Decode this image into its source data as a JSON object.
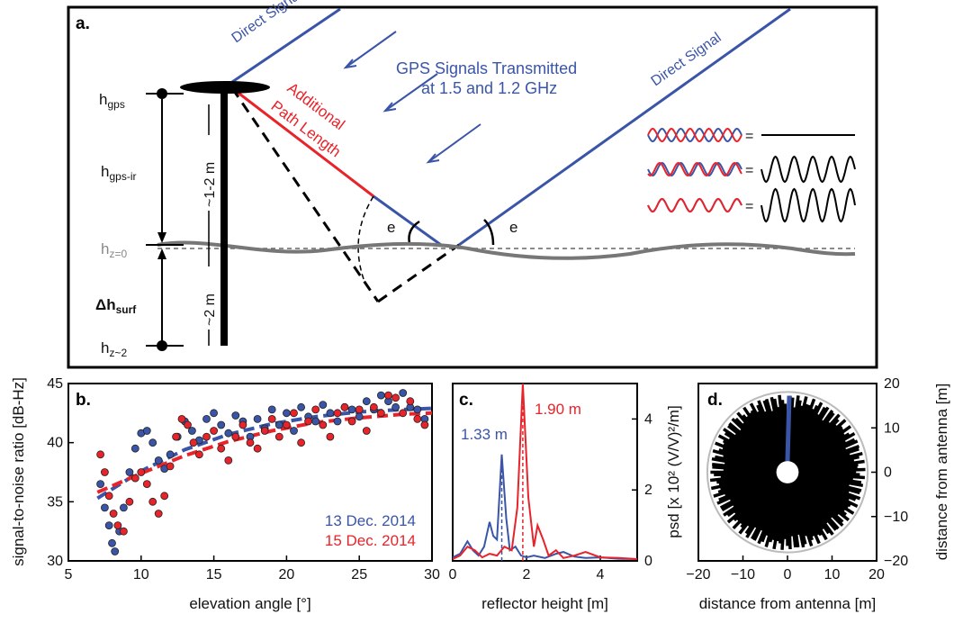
{
  "panel_a": {
    "label": "a.",
    "direct_signal_left": "Direct Signal",
    "direct_signal_right": "Direct Signal",
    "gps_signals_line1": "GPS Signals Transmitted",
    "gps_signals_line2": "at 1.5 and 1.2 GHz",
    "additional_path_line1": "Additional",
    "additional_path_line2": "Path Length",
    "h_gps": "h",
    "h_gps_sub": "gps",
    "h_gps_ir": "h",
    "h_gps_ir_sub": "gps-ir",
    "h_z0": "h",
    "h_z0_sub": "z=0",
    "delta_h": "Δh",
    "delta_h_sub": "surf",
    "h_z2": "h",
    "h_z2_sub": "z~2",
    "range_upper": "~1-2 m",
    "range_lower": "~2 m",
    "angle_label_left": "e",
    "angle_label_right": "e",
    "equals_sign": "=",
    "colors": {
      "blue": "#3a55a8",
      "red": "#e8232a",
      "gray": "#777777"
    }
  },
  "panel_b": {
    "label": "b.",
    "legend": [
      "13 Dec. 2014",
      "15 Dec. 2014"
    ],
    "legend_colors": [
      "#3a55a8",
      "#e8232a"
    ]
  },
  "panel_c": {
    "label": "c.",
    "peak_blue": "1.33 m",
    "peak_red": "1.90 m"
  },
  "panel_d": {
    "label": "d."
  },
  "chart_data": [
    {
      "type": "scatter",
      "panel": "b",
      "xlabel": "elevation angle [°]",
      "ylabel": "signal-to-noise ratio [dB-Hz]",
      "xlim": [
        5,
        30
      ],
      "ylim": [
        30,
        45
      ],
      "xticks": [
        "5",
        "10",
        "15",
        "20",
        "25",
        "30"
      ],
      "yticks": [
        "30",
        "35",
        "40",
        "45"
      ],
      "series": [
        {
          "name": "13 Dec. 2014",
          "color": "#3a55a8",
          "x": [
            7.2,
            7.5,
            7.8,
            8.0,
            8.2,
            8.5,
            8.8,
            9.2,
            9.6,
            10.0,
            10.4,
            10.8,
            11.2,
            11.6,
            12.0,
            12.5,
            13.0,
            13.5,
            14.0,
            14.5,
            15.0,
            15.5,
            16.0,
            16.5,
            17.0,
            17.5,
            18.0,
            18.5,
            19.0,
            19.5,
            20.0,
            20.5,
            21.0,
            21.5,
            22.0,
            22.5,
            23.0,
            23.5,
            24.0,
            24.5,
            25.0,
            25.5,
            26.0,
            26.5,
            27.0,
            27.5,
            28.0,
            28.5,
            29.0,
            29.5
          ],
          "y": [
            36.5,
            34.5,
            33.0,
            31.5,
            30.8,
            32.5,
            34.5,
            37.5,
            39.5,
            40.8,
            41.0,
            40.0,
            38.5,
            37.8,
            39.0,
            40.5,
            41.8,
            41.0,
            40.2,
            42.0,
            42.5,
            41.5,
            40.8,
            42.3,
            41.8,
            40.5,
            42.0,
            41.2,
            42.8,
            41.5,
            42.5,
            41.0,
            43.0,
            42.2,
            41.8,
            43.2,
            42.5,
            41.8,
            43.0,
            42.8,
            42.2,
            43.5,
            42.8,
            44.0,
            43.5,
            43.0,
            44.2,
            43.0,
            42.8,
            42.0
          ]
        },
        {
          "name": "15 Dec. 2014",
          "color": "#e8232a",
          "x": [
            7.2,
            7.5,
            7.8,
            8.1,
            8.4,
            8.8,
            9.2,
            9.6,
            10.0,
            10.4,
            10.8,
            11.2,
            11.6,
            12.0,
            12.4,
            12.8,
            13.2,
            13.6,
            14.0,
            14.5,
            15.0,
            15.5,
            16.0,
            16.5,
            17.0,
            17.5,
            18.0,
            18.5,
            19.0,
            19.5,
            20.0,
            20.5,
            21.0,
            21.5,
            22.0,
            22.5,
            23.0,
            23.5,
            24.0,
            24.5,
            25.0,
            25.5,
            26.0,
            26.5,
            27.0,
            27.5,
            28.0,
            28.5,
            29.0,
            29.5
          ],
          "y": [
            39.0,
            37.5,
            35.5,
            34.0,
            33.0,
            32.5,
            35.0,
            37.0,
            37.5,
            36.5,
            35.0,
            34.0,
            35.5,
            38.0,
            40.5,
            42.0,
            41.5,
            40.0,
            39.0,
            40.5,
            41.0,
            39.5,
            38.5,
            40.5,
            41.5,
            40.0,
            39.5,
            41.0,
            42.0,
            40.5,
            41.5,
            42.5,
            40.0,
            41.8,
            42.8,
            41.5,
            40.5,
            42.5,
            43.0,
            41.8,
            42.8,
            41.0,
            43.0,
            42.5,
            44.0,
            43.8,
            42.5,
            43.5,
            42.0,
            41.5
          ]
        }
      ],
      "fits": [
        {
          "name": "13 Dec. 2014",
          "color": "#3a55a8",
          "x": [
            7,
            10,
            13,
            16,
            19,
            22,
            25,
            28,
            30
          ],
          "y": [
            35.3,
            37.6,
            39.4,
            40.7,
            41.6,
            42.2,
            42.6,
            42.8,
            42.9
          ]
        },
        {
          "name": "15 Dec. 2014",
          "color": "#e8232a",
          "x": [
            7,
            10,
            13,
            16,
            19,
            22,
            25,
            28,
            30
          ],
          "y": [
            35.8,
            37.4,
            38.9,
            40.1,
            41.0,
            41.7,
            42.1,
            42.4,
            42.5
          ]
        }
      ]
    },
    {
      "type": "line",
      "panel": "c",
      "xlabel": "reflector height [m]",
      "ylabel": "psd [x 10² (V/V)²/m]",
      "xlim": [
        0,
        5
      ],
      "ylim": [
        0,
        5
      ],
      "xticks": [
        "0",
        "2",
        "4"
      ],
      "yticks": [
        "0",
        "2",
        "4"
      ],
      "series": [
        {
          "name": "13 Dec. 2014",
          "color": "#3a55a8",
          "x": [
            0,
            0.2,
            0.4,
            0.55,
            0.7,
            0.85,
            1.0,
            1.1,
            1.2,
            1.33,
            1.45,
            1.55,
            1.7,
            1.85,
            2.0,
            2.2,
            2.5,
            2.8,
            3.0,
            3.3,
            3.6,
            4.0,
            4.5,
            5.0
          ],
          "y": [
            0.1,
            0.2,
            0.55,
            0.3,
            0.15,
            0.4,
            1.1,
            0.7,
            0.6,
            3.0,
            1.2,
            0.3,
            0.4,
            0.15,
            0.1,
            0.15,
            0.08,
            0.2,
            0.25,
            0.12,
            0.08,
            0.1,
            0.06,
            0.05
          ]
        },
        {
          "name": "15 Dec. 2014",
          "color": "#e8232a",
          "x": [
            0,
            0.2,
            0.4,
            0.6,
            0.8,
            1.0,
            1.2,
            1.4,
            1.6,
            1.75,
            1.9,
            2.05,
            2.2,
            2.3,
            2.45,
            2.6,
            2.8,
            3.0,
            3.3,
            3.6,
            4.0,
            4.5,
            5.0
          ],
          "y": [
            0.05,
            0.15,
            0.4,
            0.3,
            0.1,
            0.2,
            0.15,
            0.4,
            0.3,
            1.5,
            5.0,
            1.8,
            0.4,
            1.0,
            0.6,
            0.15,
            0.3,
            0.08,
            0.15,
            0.25,
            0.1,
            0.08,
            0.05
          ]
        }
      ],
      "markers": [
        {
          "label": "1.33 m",
          "x": 1.33,
          "color": "#3a55a8"
        },
        {
          "label": "1.90 m",
          "x": 1.9,
          "color": "#e8232a"
        }
      ]
    },
    {
      "type": "scatter",
      "panel": "d",
      "xlabel": "distance from antenna [m]",
      "ylabel": "distance from antenna [m]",
      "xlim": [
        -20,
        20
      ],
      "ylim": [
        -20,
        20
      ],
      "xticks": [
        "−20",
        "−10",
        "0",
        "10",
        "20"
      ],
      "yticks": [
        "−20",
        "−10",
        "0",
        "10",
        "20"
      ],
      "outer_radius": 17.5,
      "inner_radius": 2.5,
      "highlight_direction_deg": 0,
      "highlight_color": "#3a55a8"
    }
  ]
}
